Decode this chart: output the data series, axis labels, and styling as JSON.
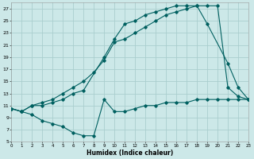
{
  "xlabel": "Humidex (Indice chaleur)",
  "background_color": "#cce8e8",
  "grid_color": "#aacece",
  "line_color": "#006060",
  "xlim": [
    0,
    23
  ],
  "ylim": [
    5,
    28
  ],
  "yticks": [
    5,
    7,
    9,
    11,
    13,
    15,
    17,
    19,
    21,
    23,
    25,
    27
  ],
  "xticks": [
    0,
    1,
    2,
    3,
    4,
    5,
    6,
    7,
    8,
    9,
    10,
    11,
    12,
    13,
    14,
    15,
    16,
    17,
    18,
    19,
    20,
    21,
    22,
    23
  ],
  "line1_x": [
    0,
    1,
    2,
    3,
    4,
    5,
    6,
    7,
    9,
    10,
    11,
    12,
    13,
    14,
    15,
    16,
    17,
    18,
    19,
    21,
    22,
    23
  ],
  "line1_y": [
    10.5,
    10.0,
    11.0,
    11.0,
    11.5,
    12.0,
    13.0,
    13.5,
    19.0,
    22.0,
    24.5,
    25.0,
    26.0,
    26.5,
    27.0,
    27.5,
    27.5,
    27.5,
    24.5,
    18.0,
    14.0,
    12.0
  ],
  "line2_x": [
    0,
    1,
    2,
    3,
    4,
    5,
    6,
    7,
    8,
    9,
    10,
    11,
    12,
    13,
    14,
    15,
    16,
    17,
    18,
    19,
    20,
    21,
    22,
    23
  ],
  "line2_y": [
    10.5,
    10.0,
    11.0,
    11.5,
    12.0,
    13.0,
    14.0,
    15.0,
    16.5,
    18.5,
    21.5,
    22.0,
    23.0,
    24.0,
    25.0,
    26.0,
    26.5,
    27.0,
    27.5,
    27.5,
    27.5,
    14.0,
    12.5,
    12.0
  ],
  "line3_x": [
    0,
    1,
    2,
    3,
    4,
    5,
    6,
    7,
    8,
    9,
    10,
    11,
    12,
    13,
    14,
    15,
    16,
    17,
    18,
    19,
    20,
    21,
    22,
    23
  ],
  "line3_y": [
    10.5,
    10.0,
    9.5,
    8.5,
    8.0,
    7.5,
    6.5,
    6.0,
    6.0,
    12.0,
    10.0,
    10.0,
    10.5,
    11.0,
    11.0,
    11.5,
    11.5,
    11.5,
    12.0,
    12.0,
    12.0,
    12.0,
    12.0,
    12.0
  ]
}
